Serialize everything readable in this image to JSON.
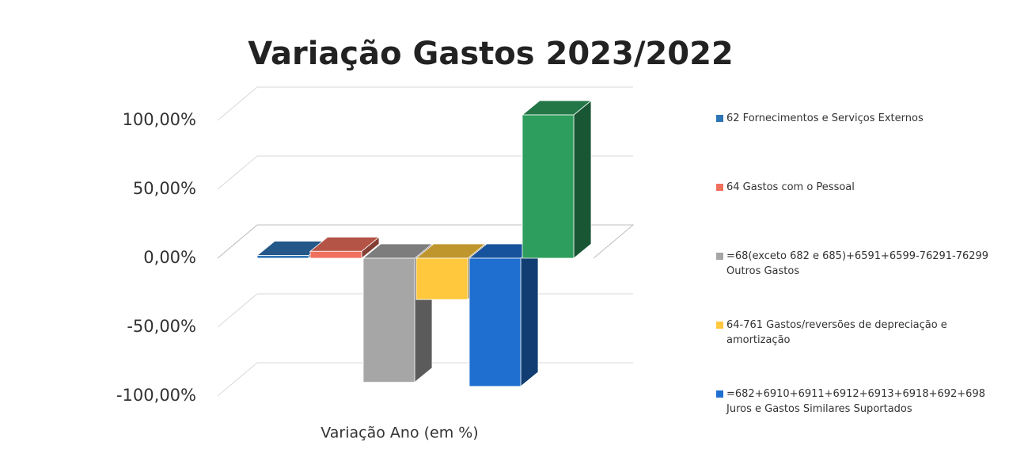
{
  "chart_data": {
    "type": "bar3d",
    "title": "Variação Gastos 2023/2022",
    "categories": [
      "Variação Ano (em %)"
    ],
    "series": [
      {
        "name": "62 Fornecimentos e Serviços Externos",
        "color": "#2e75b6",
        "values": [
          2
        ]
      },
      {
        "name": "64 Gastos com o Pessoal",
        "color": "#f0705e",
        "values": [
          5
        ]
      },
      {
        "name": "=68(exceto 682 e 685)+6591+6599-76291-76299 Outros Gastos",
        "color": "#a6a6a6",
        "values": [
          -90
        ]
      },
      {
        "name": "64-761 Gastos/reversões de depreciação e amortização",
        "color": "#ffc83d",
        "values": [
          -30
        ]
      },
      {
        "name": "=682+6910+6911+6912+6913+6918+692+698 Juros e Gastos Similares Suportados",
        "color": "#1f6fd0",
        "values": [
          -93
        ]
      },
      {
        "color": "#2e9e5e",
        "values": [
          104
        ]
      }
    ],
    "ylim": [
      -100,
      100
    ],
    "yticks": [
      {
        "value": -100,
        "label": "-100,00%"
      },
      {
        "value": -50,
        "label": "-50,00%"
      },
      {
        "value": 0,
        "label": "0,00%"
      },
      {
        "value": 50,
        "label": "50,00%"
      },
      {
        "value": 100,
        "label": "100,00%"
      }
    ],
    "grid": true,
    "legend": "right"
  }
}
